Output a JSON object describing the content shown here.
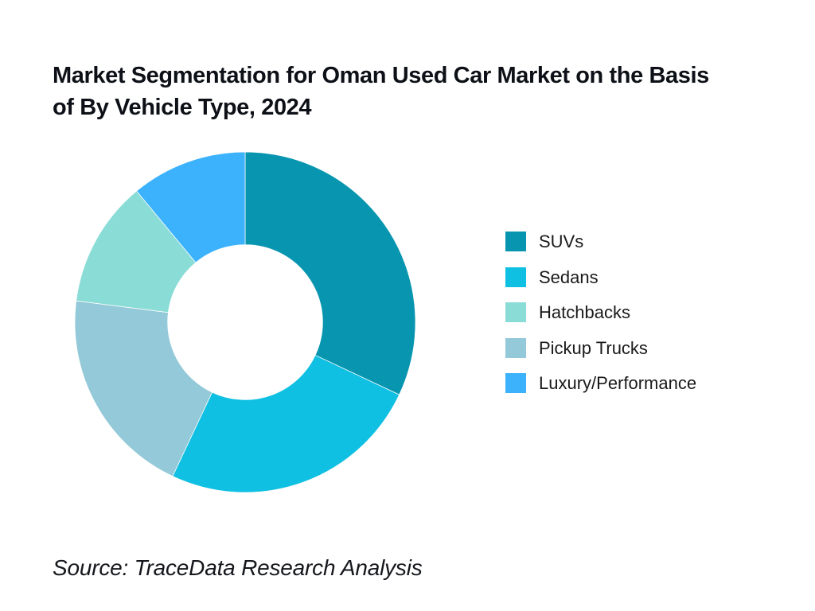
{
  "title": "Market Segmentation for Oman Used Car Market on the Basis\nof By Vehicle Type, 2024",
  "source_note": "Source: TraceData Research Analysis",
  "chart_data": {
    "type": "pie",
    "subtype": "donut",
    "title": "Market Segmentation for Oman Used Car Market on the Basis of By Vehicle Type, 2024",
    "categories": [
      "SUVs",
      "Sedans",
      "Hatchbacks",
      "Pickup Trucks",
      "Luxury/Performance"
    ],
    "values": [
      32,
      25,
      12,
      20,
      11
    ],
    "values_unit": "percent-share-estimated-from-arc-angles",
    "colors": [
      "#0795AF",
      "#10C0E2",
      "#8ADCD6",
      "#93C9D8",
      "#3DB2FC"
    ],
    "legend_order": [
      "SUVs",
      "Sedans",
      "Hatchbacks",
      "Pickup Trucks",
      "Luxury/Performance"
    ],
    "draw_order_clockwise_from_top": [
      "SUVs",
      "Sedans",
      "Pickup Trucks",
      "Hatchbacks",
      "Luxury/Performance"
    ],
    "start_angle_deg": 0,
    "inner_radius_ratio": 0.455,
    "outer_radius_px": 214,
    "legend_position": "right",
    "data_labels_shown": false,
    "grid": false
  }
}
